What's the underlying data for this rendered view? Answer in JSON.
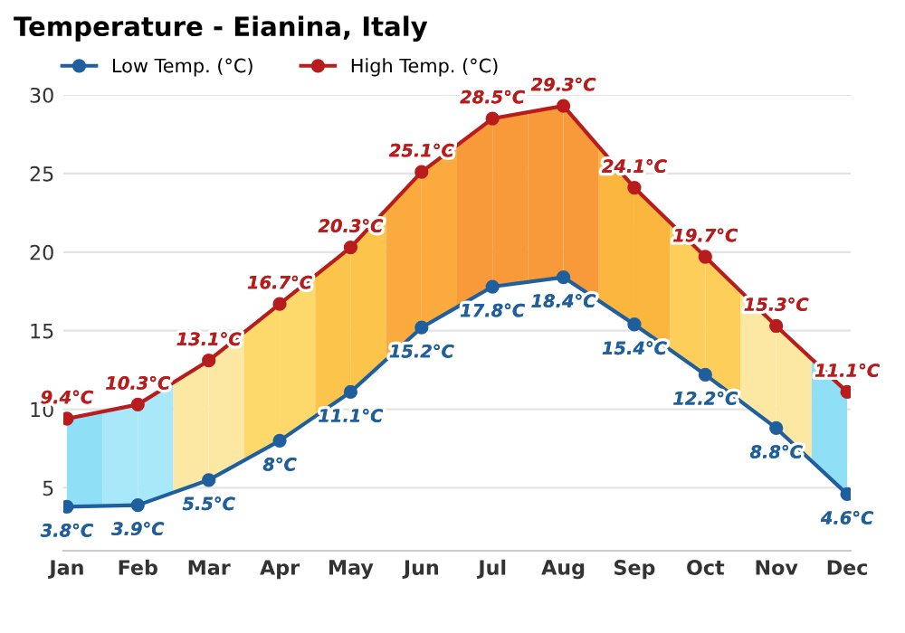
{
  "chart_data": {
    "type": "line",
    "title": "Temperature - Eianina, Italy",
    "categories": [
      "Jan",
      "Feb",
      "Mar",
      "Apr",
      "May",
      "Jun",
      "Jul",
      "Aug",
      "Sep",
      "Oct",
      "Nov",
      "Dec"
    ],
    "series": [
      {
        "name": "Low Temp. (°C)",
        "color": "#1f5f9e",
        "values": [
          3.8,
          3.9,
          5.5,
          8,
          11.1,
          15.2,
          17.8,
          18.4,
          15.4,
          12.2,
          8.8,
          4.6
        ],
        "value_labels": [
          "3.8°C",
          "3.9°C",
          "5.5°C",
          "8°C",
          "11.1°C",
          "15.2°C",
          "17.8°C",
          "18.4°C",
          "15.4°C",
          "12.2°C",
          "8.8°C",
          "4.6°C"
        ]
      },
      {
        "name": "High Temp. (°C)",
        "color": "#b81c1c",
        "values": [
          9.4,
          10.3,
          13.1,
          16.7,
          20.3,
          25.1,
          28.5,
          29.3,
          24.1,
          19.7,
          15.3,
          11.1
        ],
        "value_labels": [
          "9.4°C",
          "10.3°C",
          "13.1°C",
          "16.7°C",
          "20.3°C",
          "25.1°C",
          "28.5°C",
          "29.3°C",
          "24.1°C",
          "19.7°C",
          "15.3°C",
          "11.1°C"
        ]
      }
    ],
    "ylim": [
      1,
      30
    ],
    "yticks": [
      5,
      10,
      15,
      20,
      25,
      30
    ],
    "grid": "y",
    "legend": "top left",
    "marker": "circle",
    "line_style": "solid"
  }
}
